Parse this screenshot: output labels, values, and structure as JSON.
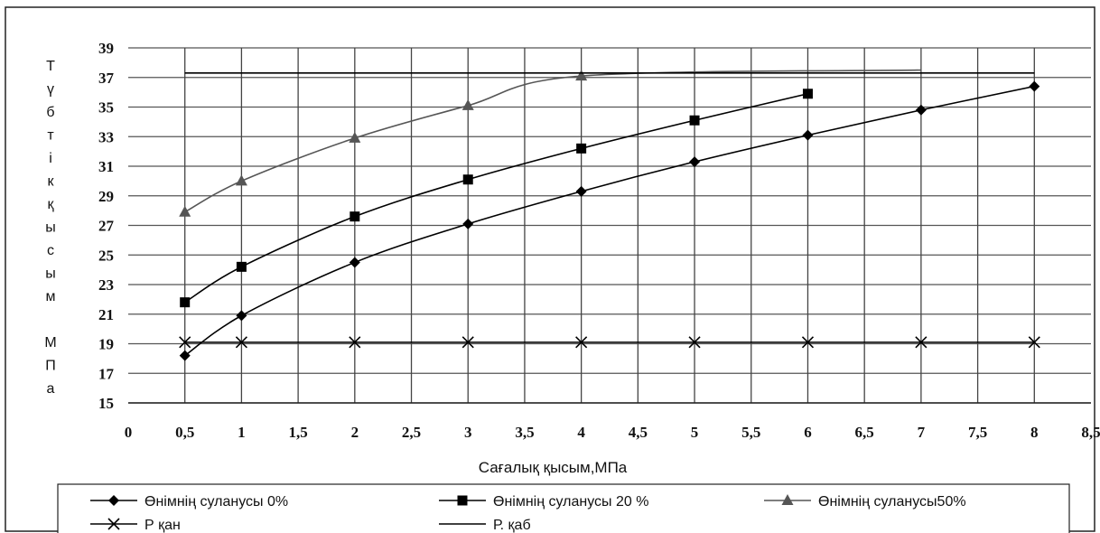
{
  "chart_data": {
    "type": "line",
    "xlabel": "Сағалық қысым,МПа",
    "ylabel": "Түбтік қысым МПа",
    "ylabel_letters": [
      "Т",
      "ү",
      "б",
      "т",
      "і",
      "к",
      "қ",
      "ы",
      "с",
      "ы",
      "м",
      "",
      "М",
      "П",
      "а"
    ],
    "xlim": [
      0,
      8.5
    ],
    "ylim": [
      15,
      39
    ],
    "x_ticks": [
      "0",
      "0,5",
      "1",
      "1,5",
      "2",
      "2,5",
      "3",
      "3,5",
      "4",
      "4,5",
      "5",
      "5,5",
      "6",
      "6,5",
      "7",
      "7,5",
      "8",
      "8,5"
    ],
    "y_ticks": [
      "15",
      "17",
      "19",
      "21",
      "23",
      "25",
      "27",
      "29",
      "31",
      "33",
      "35",
      "37",
      "39"
    ],
    "grid": true,
    "legend_position": "bottom",
    "series": [
      {
        "name": "Өнімнің суланусы 0%",
        "marker": "diamond",
        "color": "#000000",
        "x": [
          0.5,
          1,
          2,
          3,
          4,
          5,
          6,
          7,
          8
        ],
        "y": [
          18.2,
          20.9,
          24.5,
          27.1,
          29.3,
          31.3,
          33.1,
          34.8,
          36.4
        ]
      },
      {
        "name": "Өнімнің суланусы 20 %",
        "marker": "square",
        "color": "#000000",
        "x": [
          0.5,
          1,
          2,
          3,
          4,
          5,
          6
        ],
        "y": [
          21.8,
          24.2,
          27.6,
          30.1,
          32.2,
          34.1,
          35.9
        ]
      },
      {
        "name": "Өнімнің суланусы50%",
        "marker": "triangle",
        "color": "#555555",
        "x": [
          0.5,
          1,
          2,
          3,
          4,
          7
        ],
        "y": [
          27.9,
          30.0,
          32.9,
          35.1,
          37.1,
          37.5
        ]
      },
      {
        "name": "Р қан",
        "marker": "x",
        "color": "#000000",
        "x": [
          0.5,
          1,
          2,
          3,
          4,
          5,
          6,
          7,
          8
        ],
        "y": [
          19.1,
          19.1,
          19.1,
          19.1,
          19.1,
          19.1,
          19.1,
          19.1,
          19.1
        ]
      },
      {
        "name": "Р. қаб",
        "marker": "none",
        "color": "#000000",
        "x": [
          0.5,
          8
        ],
        "y": [
          37.3,
          37.3
        ]
      }
    ]
  }
}
